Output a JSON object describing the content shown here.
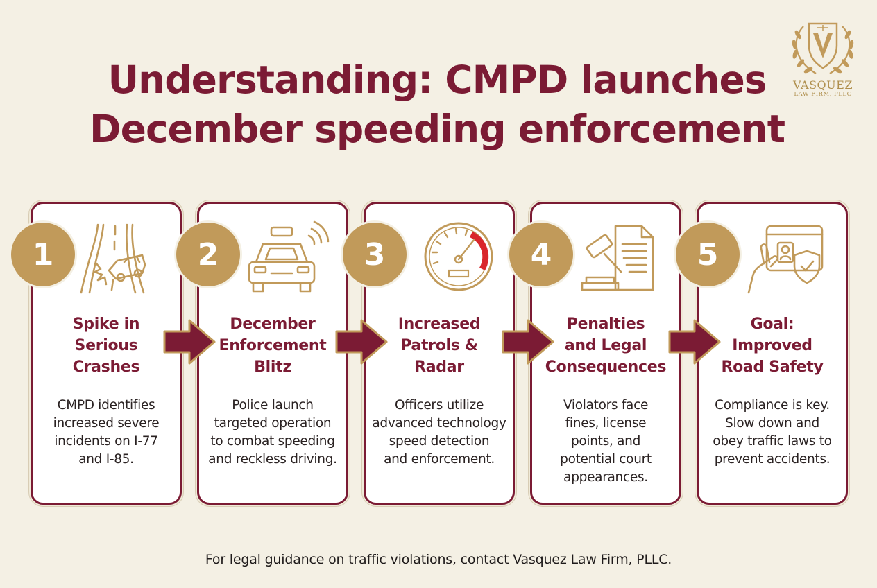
{
  "title": {
    "line1": "Understanding: CMPD launches",
    "line2": "December speeding enforcement"
  },
  "logo": {
    "name": "VASQUEZ",
    "subtitle": "LAW FIRM, PLLC"
  },
  "steps": [
    {
      "number": "1",
      "icon": "crash-icon",
      "title": [
        "Spike in",
        "Serious",
        "Crashes"
      ],
      "description": [
        "CMPD identifies",
        "increased severe",
        "incidents on I-77",
        "and I-85."
      ]
    },
    {
      "number": "2",
      "icon": "police-car-icon",
      "title": [
        "December",
        "Enforcement",
        "Blitz"
      ],
      "description": [
        "Police launch",
        "targeted operation",
        "to combat speeding",
        "and reckless driving."
      ]
    },
    {
      "number": "3",
      "icon": "speedometer-icon",
      "title": [
        "Increased",
        "Patrols &",
        "Radar"
      ],
      "description": [
        "Officers utilize",
        "advanced technology",
        "speed detection",
        "and enforcement."
      ]
    },
    {
      "number": "4",
      "icon": "gavel-document-icon",
      "title": [
        "Penalties",
        "and Legal",
        "Consequences"
      ],
      "description": [
        "Violators face",
        "fines, license",
        "points, and",
        "potential court",
        "appearances."
      ]
    },
    {
      "number": "5",
      "icon": "license-shield-icon",
      "title": [
        "Goal:",
        "Improved",
        "Road Safety"
      ],
      "description": [
        "Compliance is key.",
        "Slow down and",
        "obey traffic laws to",
        "prevent accidents."
      ]
    }
  ],
  "footer": "For legal guidance on traffic violations, contact Vasquez Law Firm, PLLC.",
  "colors": {
    "background": "#f4f0e4",
    "maroon": "#7b1b34",
    "gold": "#c19a5a",
    "speed_red": "#d9262c"
  }
}
